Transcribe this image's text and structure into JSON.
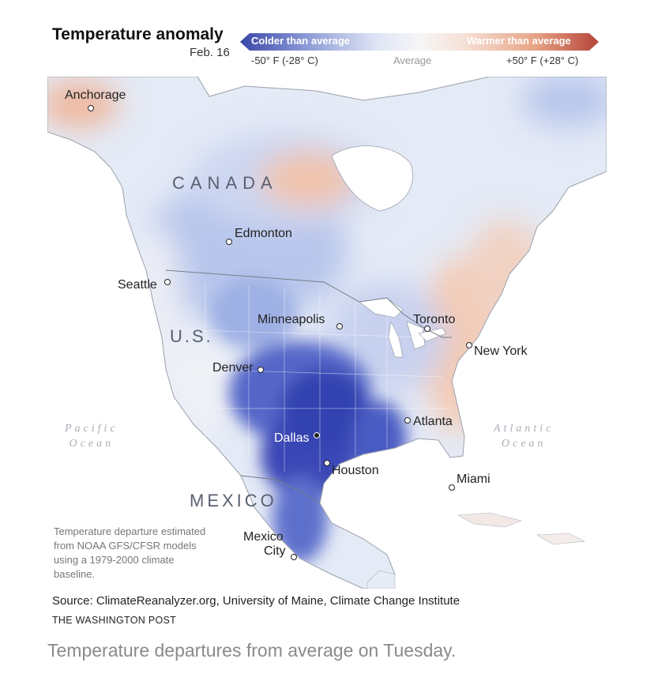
{
  "header": {
    "title": "Temperature anomaly",
    "date": "Feb. 16"
  },
  "legend": {
    "cold_label": "Colder than average",
    "warm_label": "Warmer than average",
    "min_tick": "-50° F (-28° C)",
    "mid_tick": "Average",
    "max_tick": "+50° F (+28° C)",
    "cold_color": "#2f3fae",
    "warm_color": "#b5443a",
    "neutral_color": "#f3f3f5"
  },
  "map": {
    "countries": [
      "CANADA",
      "U.S.",
      "MEXICO"
    ],
    "oceans": {
      "pacific_line1": "Pacific",
      "pacific_line2": "Ocean",
      "atlantic_line1": "Atlantic",
      "atlantic_line2": "Ocean"
    },
    "cities": {
      "anchorage": "Anchorage",
      "edmonton": "Edmonton",
      "seattle": "Seattle",
      "minneapolis": "Minneapolis",
      "toronto": "Toronto",
      "new_york": "New York",
      "denver": "Denver",
      "atlanta": "Atlanta",
      "dallas": "Dallas",
      "houston": "Houston",
      "miami": "Miami",
      "mexico_city_line1": "Mexico",
      "mexico_city_line2": "City"
    }
  },
  "note": "Temperature departure estimated from NOAA GFS/CFSR models using a 1979-2000 climate baseline.",
  "source": "Source: ClimateReanalyzer.org, University of Maine, Climate Change Institute",
  "credit": "THE WASHINGTON POST",
  "caption": "Temperature departures from average on Tuesday."
}
